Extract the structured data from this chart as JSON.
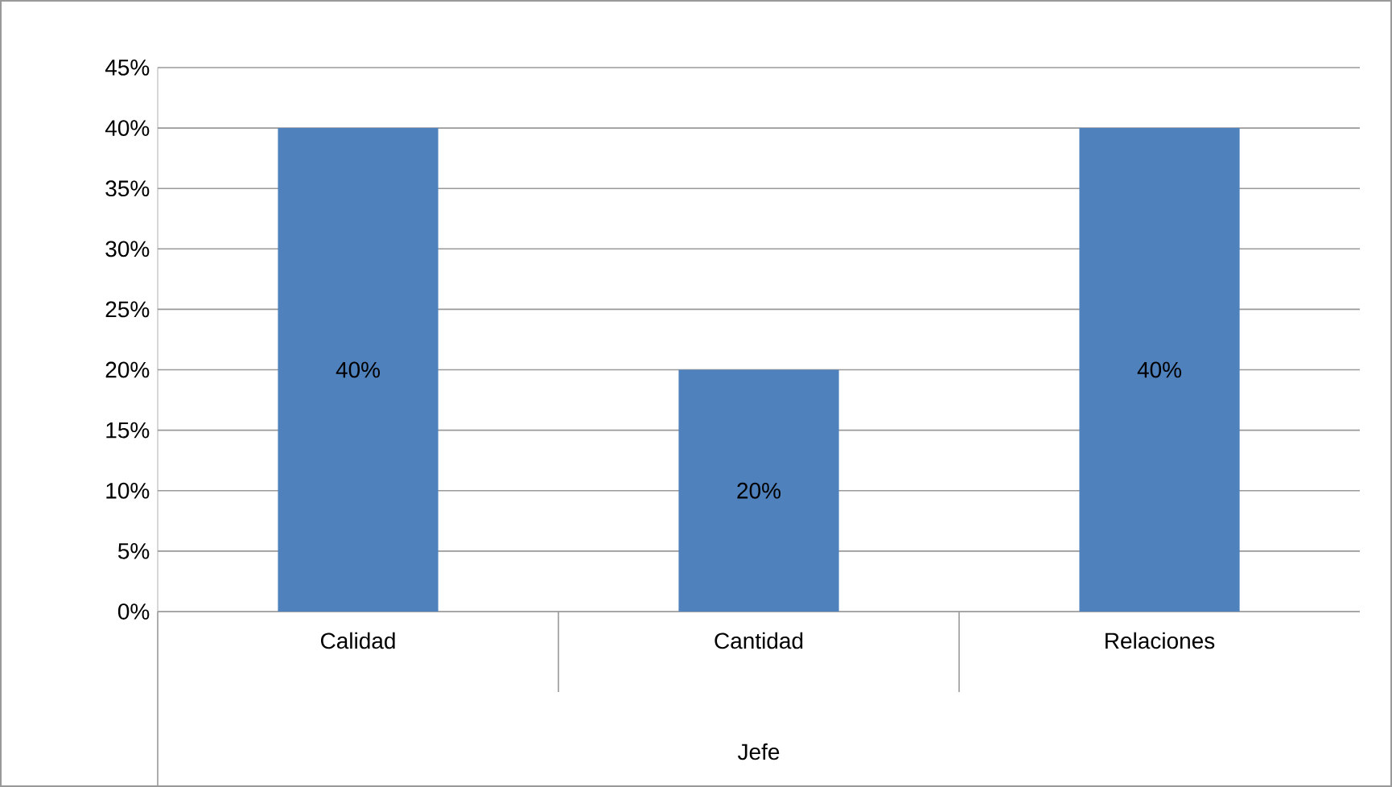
{
  "chart_data": {
    "type": "bar",
    "xlabel": "Jefe",
    "categories": [
      "Calidad",
      "Cantidad",
      "Relaciones"
    ],
    "values": [
      40,
      20,
      40
    ],
    "color": "#4f81bd",
    "value_labels": [
      "40%",
      "20%",
      "40%"
    ],
    "ylim": [
      0,
      45
    ],
    "yticks": [
      {
        "value": 0,
        "label": "0%"
      },
      {
        "value": 5,
        "label": "5%"
      },
      {
        "value": 10,
        "label": "10%"
      },
      {
        "value": 15,
        "label": "15%"
      },
      {
        "value": 20,
        "label": "20%"
      },
      {
        "value": 25,
        "label": "25%"
      },
      {
        "value": 30,
        "label": "30%"
      },
      {
        "value": 35,
        "label": "35%"
      },
      {
        "value": 40,
        "label": "40%"
      },
      {
        "value": 45,
        "label": "45%"
      }
    ],
    "grid": "y"
  }
}
